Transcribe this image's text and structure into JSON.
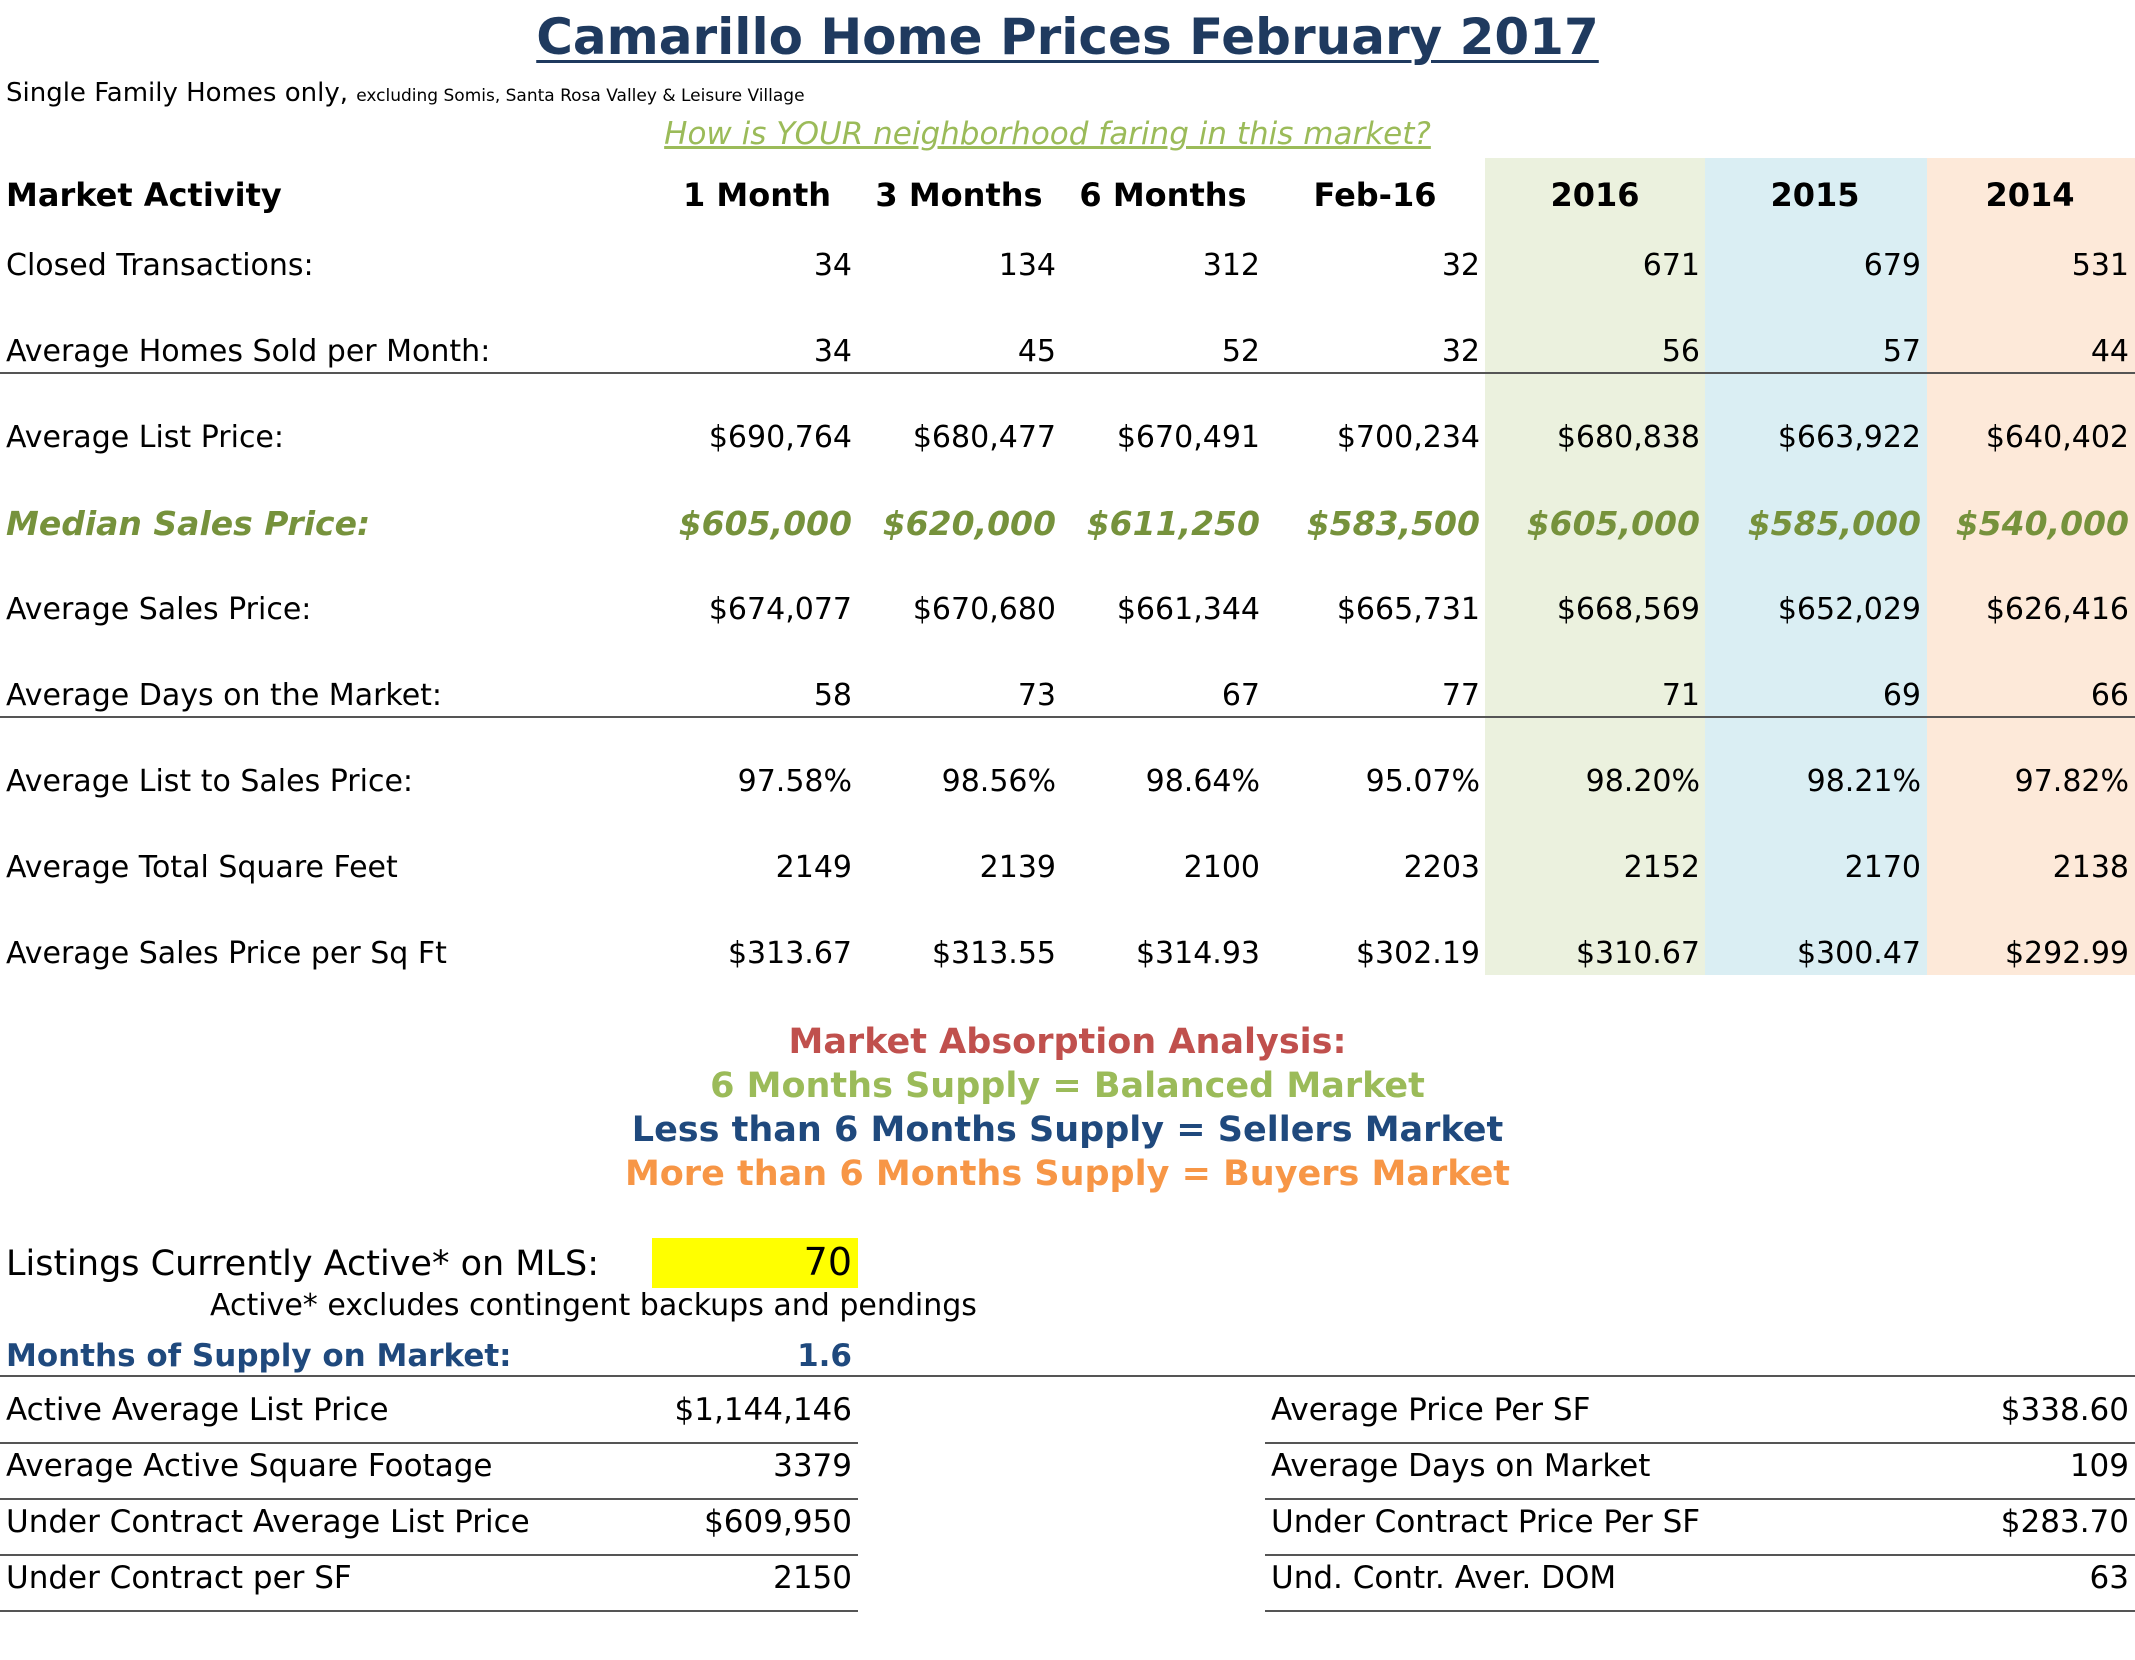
{
  "header": {
    "title": "Camarillo Home Prices February 2017",
    "subtitle_main": "Single Family Homes only,",
    "subtitle_small": "excluding Somis, Santa Rosa Valley & Leisure Village",
    "tagline": "How is YOUR neighborhood faring in this market?"
  },
  "colors": {
    "title": "#1f3a5f",
    "green_text": "#76923c",
    "light_green_text": "#9bbb59",
    "col_2016_bg": "#ebf1de",
    "col_2015_bg": "#daeef3",
    "col_2014_bg": "#fde9d9",
    "absorption_title": "#c0504d",
    "sellers_market": "#1f497d",
    "buyers_market": "#f79646",
    "highlight": "#ffff00"
  },
  "table": {
    "headers": [
      "Market Activity",
      "1 Month",
      "3 Months",
      "6 Months",
      "Feb-16",
      "2016",
      "2015",
      "2014"
    ],
    "rows": [
      {
        "label": "Closed Transactions:",
        "values": [
          "34",
          "134",
          "312",
          "32",
          "671",
          "679",
          "531"
        ]
      },
      {
        "label": "Average Homes Sold per Month:",
        "values": [
          "34",
          "45",
          "52",
          "32",
          "56",
          "57",
          "44"
        ]
      },
      {
        "label": "Average List Price:",
        "values": [
          "$690,764",
          "$680,477",
          "$670,491",
          "$700,234",
          "$680,838",
          "$663,922",
          "$640,402"
        ]
      },
      {
        "label": "Median Sales Price:",
        "values": [
          "$605,000",
          "$620,000",
          "$611,250",
          "$583,500",
          "$605,000",
          "$585,000",
          "$540,000"
        ]
      },
      {
        "label": "Average Sales Price:",
        "values": [
          "$674,077",
          "$670,680",
          "$661,344",
          "$665,731",
          "$668,569",
          "$652,029",
          "$626,416"
        ]
      },
      {
        "label": "Average Days on the Market:",
        "values": [
          "58",
          "73",
          "67",
          "77",
          "71",
          "69",
          "66"
        ]
      },
      {
        "label": "Average List to Sales Price:",
        "values": [
          "97.58%",
          "98.56%",
          "98.64%",
          "95.07%",
          "98.20%",
          "98.21%",
          "97.82%"
        ]
      },
      {
        "label": "Average Total Square Feet",
        "values": [
          "2149",
          "2139",
          "2100",
          "2203",
          "2152",
          "2170",
          "2138"
        ]
      },
      {
        "label": "Average Sales Price per Sq Ft",
        "values": [
          "$313.67",
          "$313.55",
          "$314.93",
          "$302.19",
          "$310.67",
          "$300.47",
          "$292.99"
        ]
      }
    ]
  },
  "absorption": {
    "title": "Market Absorption Analysis:",
    "balanced": "6 Months Supply = Balanced Market",
    "sellers": "Less than 6 Months Supply = Sellers Market",
    "buyers": "More than 6 Months Supply = Buyers Market"
  },
  "listings": {
    "label": "Listings Currently Active* on MLS:",
    "value": "70",
    "note": "Active* excludes contingent backups and pendings",
    "supply_label": "Months of Supply on Market:",
    "supply_value": "1.6"
  },
  "lower_left": [
    {
      "label": "Active Average List Price",
      "value": "$1,144,146"
    },
    {
      "label": "Average Active Square Footage",
      "value": "3379"
    },
    {
      "label": "Under Contract Average List Price",
      "value": "$609,950"
    },
    {
      "label": "Under Contract per SF",
      "value": "2150"
    }
  ],
  "lower_right": [
    {
      "label": "Average Price Per SF",
      "value": "$338.60"
    },
    {
      "label": "Average Days on Market",
      "value": "109"
    },
    {
      "label": "Under Contract Price Per SF",
      "value": "$283.70"
    },
    {
      "label": "Und. Contr. Aver. DOM",
      "value": "63"
    }
  ]
}
